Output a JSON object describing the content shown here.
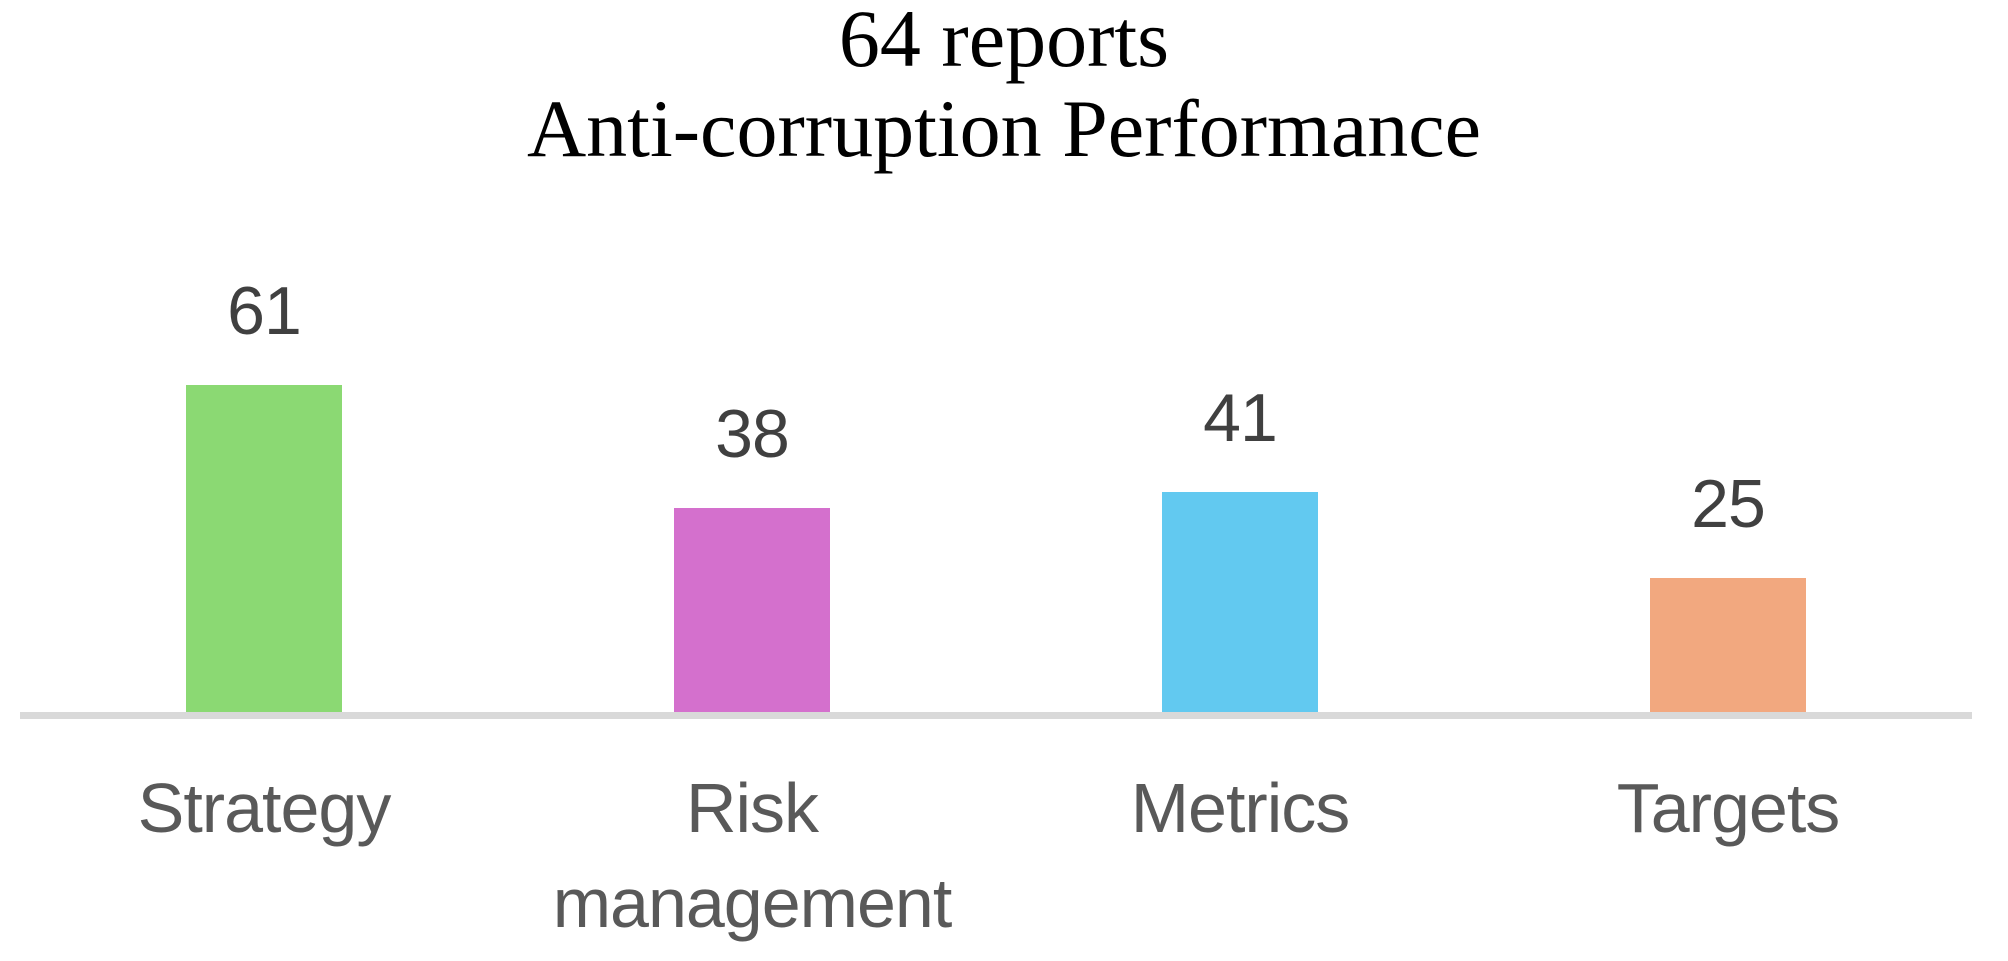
{
  "chart_data": {
    "type": "bar",
    "title": "64 reports Anti-corruption Performance",
    "title_lines": [
      "64 reports",
      "Anti-corruption Performance"
    ],
    "categories": [
      "Strategy",
      "Risk management",
      "Metrics",
      "Targets"
    ],
    "values": [
      61,
      38,
      41,
      25
    ],
    "bar_colors": [
      "#8BD973",
      "#D470CD",
      "#62C9F0",
      "#F2A87F"
    ],
    "xlabel": "",
    "ylabel": "",
    "ylim": [
      0,
      61
    ],
    "grid": false,
    "legend": false,
    "data_labels_visible": true,
    "y_axis_visible": false,
    "x_axis_visible": true,
    "colors": {
      "baseline": "#D9D9D9",
      "title_text": "#000000",
      "value_label_text": "#404040",
      "category_label_text": "#595959",
      "background": "#FFFFFF"
    }
  }
}
